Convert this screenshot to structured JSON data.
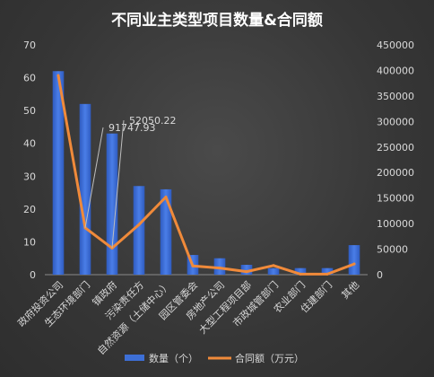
{
  "chart_data": {
    "type": "bar",
    "title": "不同业主类型项目数量&合同额",
    "categories": [
      "政府投资公司",
      "生态环境部门",
      "镇政府",
      "污染责任方",
      "自然资源（土储中心）",
      "园区管委会",
      "房地产公司",
      "大型工程项目部",
      "市政城管部门",
      "农业部门",
      "住建部门",
      "其他"
    ],
    "series": [
      {
        "name": "数量（个）",
        "type": "bar",
        "axis": "left",
        "values": [
          62,
          52,
          43,
          27,
          26,
          6,
          5,
          3,
          2,
          2,
          2,
          9
        ]
      },
      {
        "name": "合同额（万元）",
        "type": "line",
        "axis": "right",
        "values": [
          390000,
          91747.93,
          52050.22,
          98000,
          152000,
          17000,
          13000,
          6000,
          18000,
          1000,
          1000,
          21000
        ]
      }
    ],
    "y_left": {
      "min": 0,
      "max": 70,
      "step": 10
    },
    "y_right": {
      "min": 0,
      "max": 450000,
      "step": 50000
    },
    "annotations": [
      {
        "category_index": 1,
        "text": "91747.93"
      },
      {
        "category_index": 2,
        "text": "52050.22"
      }
    ],
    "legend_position": "bottom",
    "grid": false,
    "colors": {
      "bar": "#3d6fd6",
      "line": "#f08a3a",
      "text": "#d9d9d9",
      "title": "#ffffff"
    }
  }
}
